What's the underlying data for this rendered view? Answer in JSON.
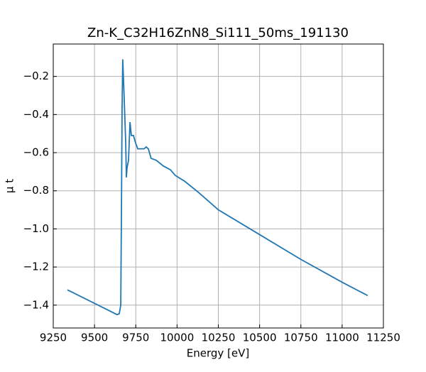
{
  "chart_data": {
    "type": "line",
    "title": "Zn-K_C32H16ZnN8_Si111_50ms_191130",
    "x_label": "Energy [eV]",
    "y_label": "μ t",
    "x": [
      9336,
      9637,
      9650,
      9659,
      9663,
      9667,
      9671,
      9680,
      9689,
      9693,
      9697,
      9706,
      9715,
      9723,
      9736,
      9749,
      9762,
      9779,
      9800,
      9813,
      9826,
      9843,
      9874,
      9917,
      9960,
      9990,
      10046,
      10132,
      10250,
      10500,
      10750,
      11000,
      11155
    ],
    "series": [
      {
        "name": "μ t",
        "color": "#1f77b4",
        "values": [
          -1.32,
          -1.45,
          -1.445,
          -1.4,
          -0.92,
          -0.36,
          -0.11,
          -0.32,
          -0.55,
          -0.73,
          -0.68,
          -0.64,
          -0.44,
          -0.51,
          -0.51,
          -0.55,
          -0.58,
          -0.58,
          -0.58,
          -0.57,
          -0.58,
          -0.63,
          -0.64,
          -0.67,
          -0.69,
          -0.72,
          -0.75,
          -0.81,
          -0.9,
          -1.03,
          -1.16,
          -1.28,
          -1.35
        ]
      }
    ],
    "xlim": [
      9250,
      11250
    ],
    "ylim": [
      -1.52,
      -0.03
    ],
    "xticks": [
      9250,
      9500,
      9750,
      10000,
      10250,
      10500,
      10750,
      11000,
      11250
    ],
    "yticks": [
      {
        "value": -1.4,
        "label": "−1.4"
      },
      {
        "value": -1.2,
        "label": "−1.2"
      },
      {
        "value": -1.0,
        "label": "−1.0"
      },
      {
        "value": -0.8,
        "label": "−0.8"
      },
      {
        "value": -0.6,
        "label": "−0.6"
      },
      {
        "value": -0.4,
        "label": "−0.4"
      },
      {
        "value": -0.2,
        "label": "−0.2"
      }
    ],
    "grid": true
  }
}
